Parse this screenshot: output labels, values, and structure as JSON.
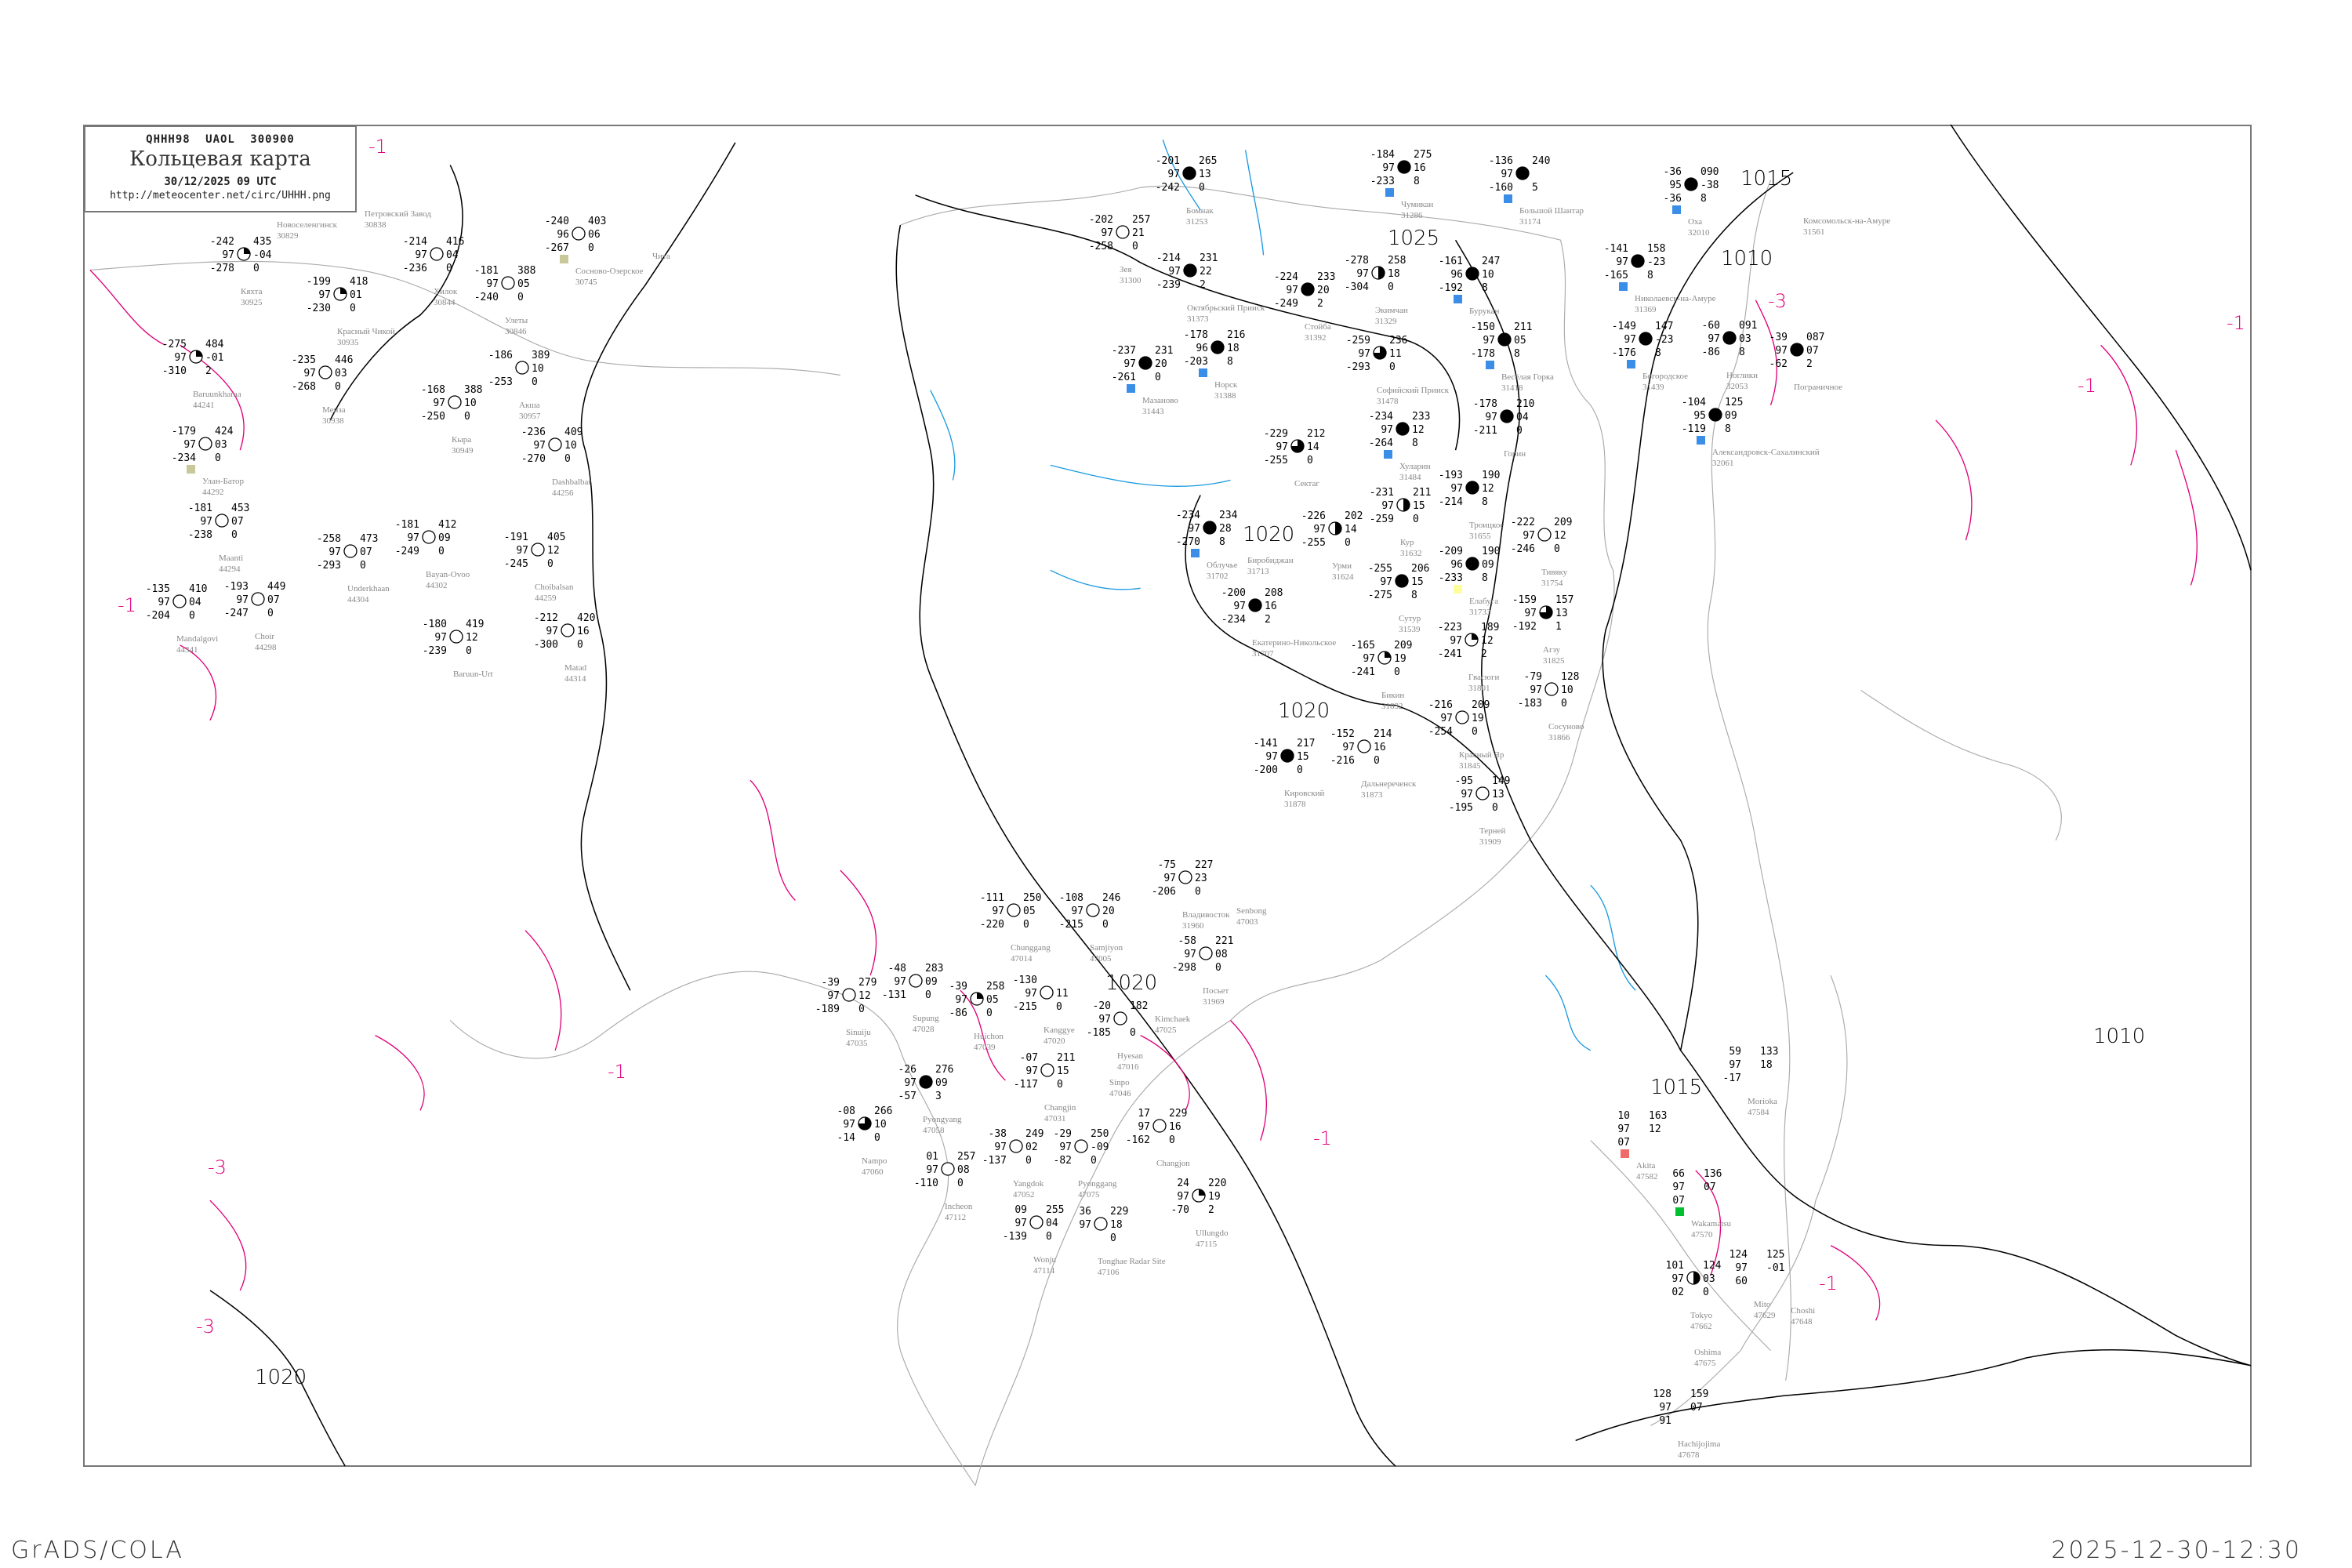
{
  "header": {
    "code_line": "QHHH98  UAOL  300900",
    "title": "Кольцевая карта",
    "datetime": "30/12/2025 09 UTC",
    "url": "http://meteocenter.net/circ/UHHH.png"
  },
  "footer": {
    "left": "GrADS/COLA",
    "right": "2025-12-30-12:30"
  },
  "colors": {
    "isobar": "#000000",
    "isotherm": "#e0007a",
    "coast": "#aaaaaa",
    "river": "#1a9ae0",
    "snow_marker": "#3b8ee8",
    "dust_marker": "#c8c89a",
    "rain_marker": "#00c030",
    "alert_marker": "#f06a6a",
    "frame": "#777777"
  },
  "isobar_labels": [
    "1025",
    "1015",
    "1010",
    "1020",
    "1020",
    "1020",
    "1010",
    "1015",
    "1020"
  ],
  "isotherm_labels": [
    "-1",
    "-3",
    "-1",
    "-1",
    "-1",
    "-3",
    "-1",
    "-1",
    "-3",
    "-1"
  ],
  "stations": [
    {
      "name": "Бомнак",
      "index": "31253",
      "tl": "-201",
      "ml": "97",
      "bl": "-242",
      "tr": "265",
      "mr": "13",
      "br": "0",
      "cover": 1
    },
    {
      "name": "Зея",
      "index": "31300",
      "tl": "-202",
      "ml": "97",
      "bl": "-258",
      "tr": "257",
      "mr": "21",
      "br": "0",
      "cover": 0
    },
    {
      "name": "Октябрьский Прииск",
      "index": "31373",
      "tl": "-214",
      "ml": "97",
      "bl": "-239",
      "tr": "231",
      "mr": "22",
      "br": "2",
      "cover": 1
    },
    {
      "name": "Стойба",
      "index": "31392",
      "tl": "-224",
      "ml": "97",
      "bl": "-249",
      "tr": "233",
      "mr": "20",
      "br": "2",
      "cover": 1
    },
    {
      "name": "Экимчан",
      "index": "31329",
      "tl": "-278",
      "ml": "97",
      "bl": "-304",
      "tr": "258",
      "mr": "18",
      "br": "0",
      "cover": 0.5
    },
    {
      "name": "Чумикан",
      "index": "31286",
      "tl": "-184",
      "ml": "97",
      "bl": "-233",
      "tr": "275",
      "mr": "16",
      "br": "8",
      "cover": 1,
      "marker": "snow"
    },
    {
      "name": "Норск",
      "index": "31388",
      "tl": "-178",
      "ml": "96",
      "bl": "-203",
      "tr": "216",
      "mr": "18",
      "br": "8",
      "cover": 1,
      "marker": "snow"
    },
    {
      "name": "Софийский Прииск",
      "index": "31478",
      "tl": "-259",
      "ml": "97",
      "bl": "-293",
      "tr": "236",
      "mr": "11",
      "br": "0",
      "cover": 0.75
    },
    {
      "name": "Мазаново",
      "index": "31443",
      "tl": "-237",
      "ml": "97",
      "bl": "-261",
      "tr": "231",
      "mr": "20",
      "br": "0",
      "cover": 1,
      "marker": "snow"
    },
    {
      "name": "Хуларин",
      "index": "31484",
      "tl": "-234",
      "ml": "97",
      "bl": "-264",
      "tr": "233",
      "mr": "12",
      "br": "8",
      "cover": 1,
      "marker": "snow"
    },
    {
      "name": "Большой Шантар",
      "index": "31174",
      "tl": "-136",
      "ml": "97",
      "bl": "-160",
      "tr": "240",
      "mr": "",
      "br": "5",
      "cover": 1,
      "marker": "snow"
    },
    {
      "name": "Бурукан",
      "index": "",
      "tl": "-161",
      "ml": "96",
      "bl": "-192",
      "tr": "247",
      "mr": "10",
      "br": "8",
      "cover": 1,
      "marker": "snow"
    },
    {
      "name": "Весёлая Горка",
      "index": "31418",
      "tl": "-150",
      "ml": "97",
      "bl": "-178",
      "tr": "211",
      "mr": "05",
      "br": "8",
      "cover": 1,
      "marker": "snow"
    },
    {
      "name": "Горин",
      "index": "",
      "tl": "-178",
      "ml": "97",
      "bl": "-211",
      "tr": "210",
      "mr": "04",
      "br": "0",
      "cover": 1
    },
    {
      "name": "Николаевск-на-Амуре",
      "index": "31369",
      "tl": "-141",
      "ml": "97",
      "bl": "-165",
      "tr": "158",
      "mr": "-23",
      "br": "8",
      "cover": 1,
      "marker": "snow"
    },
    {
      "name": "Богородское",
      "index": "31439",
      "tl": "-149",
      "ml": "97",
      "bl": "-176",
      "tr": "147",
      "mr": "-23",
      "br": "8",
      "cover": 1,
      "marker": "snow"
    },
    {
      "name": "Оха",
      "index": "32010",
      "tl": "-36",
      "ml": "95",
      "bl": "-36",
      "tr": "090",
      "mr": "-38",
      "br": "8",
      "cover": 1,
      "marker": "snow"
    },
    {
      "name": "Ноглики",
      "index": "32053",
      "tl": "-60",
      "ml": "97",
      "bl": "-86",
      "tr": "091",
      "mr": "03",
      "br": "8",
      "cover": 1
    },
    {
      "name": "Александровск-Сахалинский",
      "index": "32061",
      "tl": "-104",
      "ml": "95",
      "bl": "-119",
      "tr": "125",
      "mr": "09",
      "br": "8",
      "cover": 1,
      "marker": "snow"
    },
    {
      "name": "Пограничное",
      "index": "",
      "tl": "-39",
      "ml": "97",
      "bl": "-62",
      "tr": "087",
      "mr": "07",
      "br": "2",
      "cover": 1
    },
    {
      "name": "Кяхта",
      "index": "30925",
      "tl": "-242",
      "ml": "97",
      "bl": "-278",
      "tr": "435",
      "mr": "-04",
      "br": "0",
      "cover": 0.25
    },
    {
      "name": "Красный Чикой",
      "index": "30935",
      "tl": "-199",
      "ml": "97",
      "bl": "-230",
      "tr": "418",
      "mr": "01",
      "br": "0",
      "cover": 0.25
    },
    {
      "name": "Baruunkharaa",
      "index": "44241",
      "tl": "-275",
      "ml": "97",
      "bl": "-310",
      "tr": "484",
      "mr": "-01",
      "br": "2",
      "cover": 0.25
    },
    {
      "name": "Менза",
      "index": "30938",
      "tl": "-235",
      "ml": "97",
      "bl": "-268",
      "tr": "446",
      "mr": "03",
      "br": "0",
      "cover": 0
    },
    {
      "name": "Улан-Батор",
      "index": "44292",
      "tl": "-179",
      "ml": "97",
      "bl": "-234",
      "tr": "424",
      "mr": "03",
      "br": "0",
      "cover": 0,
      "marker": "dust"
    },
    {
      "name": "Maanti",
      "index": "44294",
      "tl": "-181",
      "ml": "97",
      "bl": "-238",
      "tr": "453",
      "mr": "07",
      "br": "0",
      "cover": 0
    },
    {
      "name": "Mandalgovi",
      "index": "44341",
      "tl": "-135",
      "ml": "97",
      "bl": "-204",
      "tr": "410",
      "mr": "04",
      "br": "0",
      "cover": 0
    },
    {
      "name": "Choir",
      "index": "44298",
      "tl": "-193",
      "ml": "97",
      "bl": "-247",
      "tr": "449",
      "mr": "07",
      "br": "0",
      "cover": 0
    },
    {
      "name": "Underkhaan",
      "index": "44304",
      "tl": "-258",
      "ml": "97",
      "bl": "-293",
      "tr": "473",
      "mr": "07",
      "br": "0",
      "cover": 0
    },
    {
      "name": "Bayan-Ovoo",
      "index": "44302",
      "tl": "-181",
      "ml": "97",
      "bl": "-249",
      "tr": "412",
      "mr": "09",
      "br": "0",
      "cover": 0
    },
    {
      "name": "Choibalsan",
      "index": "44259",
      "tl": "-191",
      "ml": "97",
      "bl": "-245",
      "tr": "405",
      "mr": "12",
      "br": "0",
      "cover": 0
    },
    {
      "name": "Хилок",
      "index": "30844",
      "tl": "-214",
      "ml": "97",
      "bl": "-236",
      "tr": "416",
      "mr": "04",
      "br": "0",
      "cover": 0
    },
    {
      "name": "Улеты",
      "index": "30846",
      "tl": "-181",
      "ml": "97",
      "bl": "-240",
      "tr": "388",
      "mr": "05",
      "br": "0",
      "cover": 0
    },
    {
      "name": "Акша",
      "index": "30957",
      "tl": "-186",
      "ml": "",
      "bl": "-253",
      "tr": "389",
      "mr": "10",
      "br": "0",
      "cover": 0
    },
    {
      "name": "Кыра",
      "index": "30949",
      "tl": "-168",
      "ml": "97",
      "bl": "-250",
      "tr": "388",
      "mr": "10",
      "br": "0",
      "cover": 0
    },
    {
      "name": "Dashbalbar",
      "index": "44256",
      "tl": "-236",
      "ml": "97",
      "bl": "-270",
      "tr": "409",
      "mr": "10",
      "br": "0",
      "cover": 0
    },
    {
      "name": "Baruun-Urt",
      "index": "",
      "tl": "-180",
      "ml": "97",
      "bl": "-239",
      "tr": "419",
      "mr": "12",
      "br": "0",
      "cover": 0
    },
    {
      "name": "Matad",
      "index": "44314",
      "tl": "-212",
      "ml": "97",
      "bl": "-300",
      "tr": "420",
      "mr": "16",
      "br": "0",
      "cover": 0
    },
    {
      "name": "Сосново-Озерское",
      "index": "30745",
      "tl": "-240",
      "ml": "96",
      "bl": "-267",
      "tr": "403",
      "mr": "06",
      "br": "0",
      "cover": 0,
      "marker": "dust"
    },
    {
      "name": "Урми",
      "index": "31624",
      "tl": "-226",
      "ml": "97",
      "bl": "-255",
      "tr": "202",
      "mr": "14",
      "br": "0",
      "cover": 0.5
    },
    {
      "name": "Сектаг",
      "index": "",
      "tl": "-229",
      "ml": "97",
      "bl": "-255",
      "tr": "212",
      "mr": "14",
      "br": "0",
      "cover": 0.75
    },
    {
      "name": "Кур",
      "index": "31632",
      "tl": "-231",
      "ml": "97",
      "bl": "-259",
      "tr": "211",
      "mr": "15",
      "br": "0",
      "cover": 0.5
    },
    {
      "name": "Сутур",
      "index": "31539",
      "tl": "-255",
      "ml": "97",
      "bl": "-275",
      "tr": "206",
      "mr": "15",
      "br": "8",
      "cover": 1
    },
    {
      "name": "Троицкое",
      "index": "31655",
      "tl": "-193",
      "ml": "97",
      "bl": "-214",
      "tr": "190",
      "mr": "12",
      "br": "8",
      "cover": 1
    },
    {
      "name": "Елабуга",
      "index": "31733",
      "tl": "-209",
      "ml": "96",
      "bl": "-233",
      "tr": "190",
      "mr": "09",
      "br": "8",
      "cover": 1,
      "marker": "haze"
    },
    {
      "name": "Тивяку",
      "index": "31754",
      "tl": "-222",
      "ml": "97",
      "bl": "-246",
      "tr": "209",
      "mr": "12",
      "br": "0",
      "cover": 0
    },
    {
      "name": "Гвасюги",
      "index": "31801",
      "tl": "-223",
      "ml": "97",
      "bl": "-241",
      "tr": "189",
      "mr": "12",
      "br": "2",
      "cover": 0.25
    },
    {
      "name": "Агзу",
      "index": "31825",
      "tl": "-159",
      "ml": "97",
      "bl": "-192",
      "tr": "157",
      "mr": "13",
      "br": "1",
      "cover": 0.75
    },
    {
      "name": "Екатерино-Никольское",
      "index": "31707",
      "tl": "-200",
      "ml": "97",
      "bl": "-234",
      "tr": "208",
      "mr": "16",
      "br": "2",
      "cover": 1
    },
    {
      "name": "Бикин",
      "index": "31832",
      "tl": "-165",
      "ml": "97",
      "bl": "-241",
      "tr": "209",
      "mr": "19",
      "br": "0",
      "cover": 0.25
    },
    {
      "name": "Красный Яр",
      "index": "31845",
      "tl": "-216",
      "ml": "97",
      "bl": "-254",
      "tr": "209",
      "mr": "19",
      "br": "0",
      "cover": 0
    },
    {
      "name": "Сосуново",
      "index": "31866",
      "tl": "-79",
      "ml": "97",
      "bl": "-183",
      "tr": "128",
      "mr": "10",
      "br": "0",
      "cover": 0
    },
    {
      "name": "Дальнереченск",
      "index": "31873",
      "tl": "-152",
      "ml": "97",
      "bl": "-216",
      "tr": "214",
      "mr": "16",
      "br": "0",
      "cover": 0
    },
    {
      "name": "Кировский",
      "index": "31878",
      "tl": "-141",
      "ml": "97",
      "bl": "-200",
      "tr": "217",
      "mr": "15",
      "br": "0",
      "cover": 1
    },
    {
      "name": "Терней",
      "index": "31909",
      "tl": "-95",
      "ml": "97",
      "bl": "-195",
      "tr": "149",
      "mr": "13",
      "br": "0",
      "cover": 0
    },
    {
      "name": "Облучье",
      "index": "31702",
      "tl": "-234",
      "ml": "97",
      "bl": "-270",
      "tr": "234",
      "mr": "28",
      "br": "8",
      "cover": 1,
      "marker": "snow"
    },
    {
      "name": "Pyongyang",
      "index": "47058",
      "tl": "-26",
      "ml": "97",
      "bl": "-57",
      "tr": "276",
      "mr": "09",
      "br": "3",
      "cover": 1
    },
    {
      "name": "Nampo",
      "index": "47060",
      "tl": "-08",
      "ml": "97",
      "bl": "-14",
      "tr": "266",
      "mr": "10",
      "br": "0",
      "cover": 0.75
    },
    {
      "name": "Supung",
      "index": "47028",
      "tl": "-48",
      "ml": "97",
      "bl": "-131",
      "tr": "283",
      "mr": "09",
      "br": "0",
      "cover": 0
    },
    {
      "name": "Sinuiju",
      "index": "47035",
      "tl": "-39",
      "ml": "97",
      "bl": "-189",
      "tr": "279",
      "mr": "12",
      "br": "0",
      "cover": 0
    },
    {
      "name": "Huichon",
      "index": "47039",
      "tl": "-39",
      "ml": "97",
      "bl": "-86",
      "tr": "258",
      "mr": "05",
      "br": "0",
      "cover": 0.25
    },
    {
      "name": "Kanggye",
      "index": "47020",
      "tl": "-130",
      "ml": "97",
      "bl": "-215",
      "tr": "",
      "mr": "11",
      "br": "0",
      "cover": 0
    },
    {
      "name": "Chunggang",
      "index": "47014",
      "tl": "-111",
      "ml": "97",
      "bl": "-220",
      "tr": "250",
      "mr": "05",
      "br": "0",
      "cover": 0
    },
    {
      "name": "Samjiyon",
      "index": "47005",
      "tl": "-108",
      "ml": "97",
      "bl": "-215",
      "tr": "246",
      "mr": "20",
      "br": "0",
      "cover": 0
    },
    {
      "name": "Hyesan",
      "index": "47016",
      "tl": "-20",
      "ml": "97",
      "bl": "-185",
      "tr": "182",
      "mr": "",
      "br": "0",
      "cover": 0
    },
    {
      "name": "Changjin",
      "index": "47031",
      "tl": "-07",
      "ml": "97",
      "bl": "-117",
      "tr": "211",
      "mr": "15",
      "br": "0",
      "cover": 0
    },
    {
      "name": "Yangdok",
      "index": "47052",
      "tl": "-38",
      "ml": "97",
      "bl": "-137",
      "tr": "249",
      "mr": "02",
      "br": "0",
      "cover": 0
    },
    {
      "name": "Pyonggang",
      "index": "47075",
      "tl": "-29",
      "ml": "97",
      "bl": "-82",
      "tr": "250",
      "mr": "-09",
      "br": "0",
      "cover": 0
    },
    {
      "name": "Changjon",
      "index": "",
      "tl": "17",
      "ml": "97",
      "bl": "-162",
      "tr": "229",
      "mr": "16",
      "br": "0",
      "cover": 0
    },
    {
      "name": "Tonghae Radar Site",
      "index": "47106",
      "tl": "36",
      "ml": "97",
      "bl": "",
      "tr": "229",
      "mr": "18",
      "br": "0",
      "cover": 0
    },
    {
      "name": "Ullungdo",
      "index": "47115",
      "tl": "24",
      "ml": "97",
      "bl": "-70",
      "tr": "220",
      "mr": "19",
      "br": "2",
      "cover": 0.25
    },
    {
      "name": "Incheon",
      "index": "47112",
      "tl": "01",
      "ml": "97",
      "bl": "-110",
      "tr": "257",
      "mr": "08",
      "br": "0",
      "cover": 0
    },
    {
      "name": "Wonju",
      "index": "47114",
      "tl": "09",
      "ml": "97",
      "bl": "-139",
      "tr": "255",
      "mr": "04",
      "br": "0",
      "cover": 0
    },
    {
      "name": "Владивосток",
      "index": "31960",
      "tl": "-75",
      "ml": "97",
      "bl": "-206",
      "tr": "227",
      "mr": "23",
      "br": "0",
      "cover": 0
    },
    {
      "name": "Посьет",
      "index": "31969",
      "tl": "-58",
      "ml": "97",
      "bl": "-298",
      "tr": "221",
      "mr": "08",
      "br": "0",
      "cover": 0
    },
    {
      "name": "Tokyo",
      "index": "47662",
      "tl": "101",
      "ml": "97",
      "bl": "02",
      "tr": "124",
      "mr": "03",
      "br": "0",
      "cover": 0.5
    },
    {
      "name": "Mito",
      "index": "47629",
      "tl": "124",
      "ml": "97",
      "bl": "60",
      "tr": "125",
      "mr": "-01",
      "br": "",
      "cover": null
    },
    {
      "name": "Morioka",
      "index": "47584",
      "tl": "59",
      "ml": "97",
      "bl": "-17",
      "tr": "133",
      "mr": "18",
      "br": "",
      "cover": null
    },
    {
      "name": "Wakamatsu",
      "index": "47570",
      "tl": "66",
      "ml": "97",
      "bl": "07",
      "tr": "136",
      "mr": "07",
      "br": "",
      "cover": null,
      "marker": "rain"
    },
    {
      "name": "Akita",
      "index": "47582",
      "tl": "10",
      "ml": "97",
      "bl": "07",
      "tr": "163",
      "mr": "12",
      "br": "",
      "cover": null,
      "marker": "alert"
    },
    {
      "name": "Hachijojima",
      "index": "47678",
      "tl": "128",
      "ml": "97",
      "bl": "91",
      "tr": "159",
      "mr": "07",
      "br": "",
      "cover": null
    }
  ],
  "place_labels": [
    {
      "name": "Kimchaek",
      "index": "47025"
    },
    {
      "name": "Choshi",
      "index": "47648"
    },
    {
      "name": "Oshima",
      "index": "47675"
    },
    {
      "name": "Комсомольск-на-Амуре",
      "index": "31561"
    },
    {
      "name": "Биробиджан",
      "index": "31713"
    },
    {
      "name": "Новоселенгинск",
      "index": "30829"
    },
    {
      "name": "Петровский Завод",
      "index": "30838"
    },
    {
      "name": "Чита",
      "index": ""
    },
    {
      "name": "Sinpo",
      "index": "47046"
    },
    {
      "name": "Senbong",
      "index": "47003"
    }
  ]
}
